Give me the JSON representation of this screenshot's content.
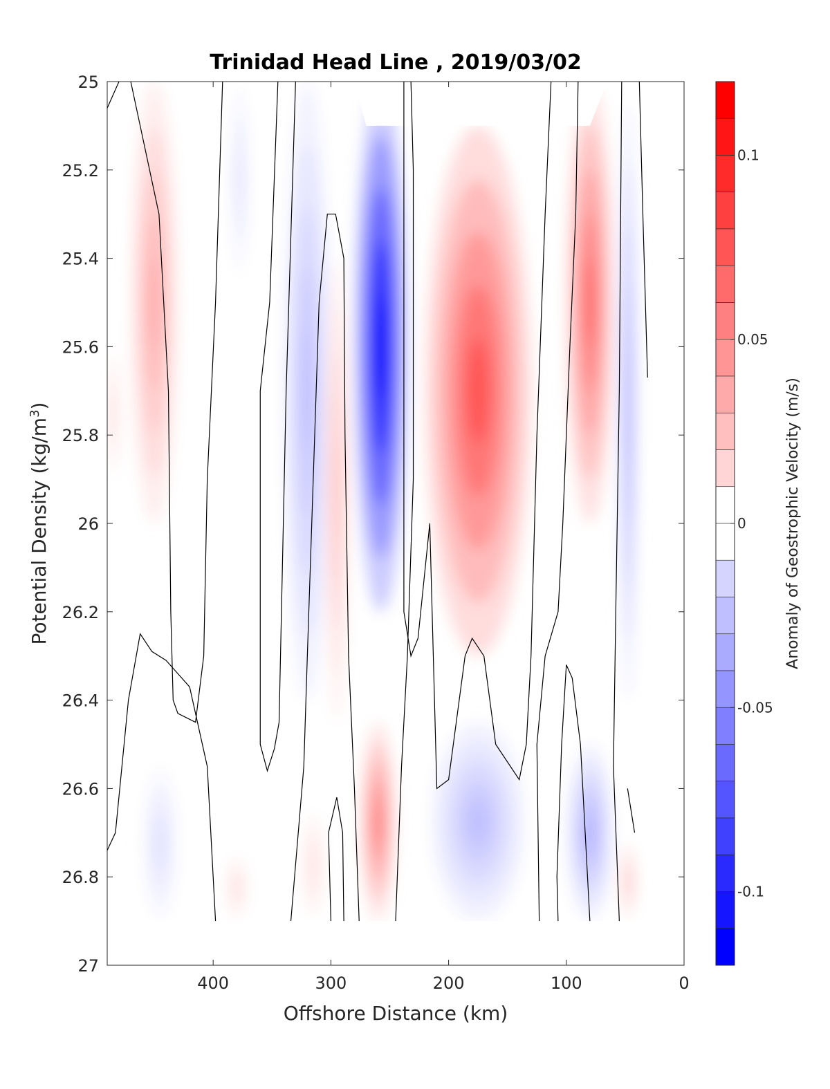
{
  "chart_data": {
    "type": "contour",
    "title": "Trinidad Head Line , 2019/03/02",
    "xlabel": "Offshore Distance (km)",
    "ylabel_main": "Potential Density (kg/m",
    "ylabel_sup": "3",
    "ylabel_close": ")",
    "xlim": [
      490,
      0
    ],
    "ylim": [
      25,
      27
    ],
    "xticks": [
      "400",
      "300",
      "200",
      "100",
      "0"
    ],
    "xtick_values": [
      400,
      300,
      200,
      100,
      0
    ],
    "yticks": [
      "25",
      "25.2",
      "25.4",
      "25.6",
      "25.8",
      "26",
      "26.2",
      "26.4",
      "26.6",
      "26.8",
      "27"
    ],
    "ytick_values": [
      25,
      25.2,
      25.4,
      25.6,
      25.8,
      26,
      26.2,
      26.4,
      26.6,
      26.8,
      27
    ],
    "colorbar": {
      "label": "Anomaly of Geostrophic Velocity (m/s)",
      "range": [
        -0.12,
        0.12
      ],
      "step": 0.01,
      "ticks": [
        "0.1",
        "0.05",
        "0",
        "-0.05",
        "-0.1"
      ],
      "tick_values": [
        0.1,
        0.05,
        0,
        -0.05,
        -0.1
      ],
      "colormap": "blue-white-red"
    },
    "colors": {
      "positive_max": "#ff0000",
      "negative_max": "#0000ff",
      "zero": "#ffffff"
    },
    "data_bottom_density": 26.9,
    "features": [
      {
        "x": [
          470,
          430
        ],
        "y": [
          25.0,
          26.0
        ],
        "peak": 0.04
      },
      {
        "x": [
          490,
          480
        ],
        "y": [
          25.6,
          25.9
        ],
        "peak": 0.02
      },
      {
        "x": [
          385,
          370
        ],
        "y": [
          25.0,
          25.44
        ],
        "peak": -0.015
      },
      {
        "x": [
          340,
          300
        ],
        "y": [
          25.0,
          26.4
        ],
        "peak": -0.03
      },
      {
        "x": [
          280,
          235
        ],
        "y": [
          25.0,
          26.2
        ],
        "peak": -0.12
      },
      {
        "x": [
          305,
          285
        ],
        "y": [
          25.4,
          26.45
        ],
        "peak": 0.03
      },
      {
        "x": [
          220,
          130
        ],
        "y": [
          25.1,
          26.3
        ],
        "peak": 0.08
      },
      {
        "x": [
          100,
          60
        ],
        "y": [
          25.0,
          26.0
        ],
        "peak": 0.07
      },
      {
        "x": [
          55,
          40
        ],
        "y": [
          25.05,
          26.4
        ],
        "peak": -0.04
      },
      {
        "x": [
          460,
          430
        ],
        "y": [
          26.55,
          26.9
        ],
        "peak": -0.015
      },
      {
        "x": [
          390,
          370
        ],
        "y": [
          26.75,
          26.9
        ],
        "peak": 0.015
      },
      {
        "x": [
          325,
          305
        ],
        "y": [
          26.65,
          26.9
        ],
        "peak": 0.015
      },
      {
        "x": [
          275,
          245
        ],
        "y": [
          26.45,
          26.9
        ],
        "peak": 0.06
      },
      {
        "x": [
          215,
          135
        ],
        "y": [
          26.45,
          26.9
        ],
        "peak": -0.03
      },
      {
        "x": [
          100,
          60
        ],
        "y": [
          26.5,
          26.9
        ],
        "peak": -0.035
      },
      {
        "x": [
          55,
          40
        ],
        "y": [
          26.72,
          26.9
        ],
        "peak": 0.025
      }
    ]
  }
}
